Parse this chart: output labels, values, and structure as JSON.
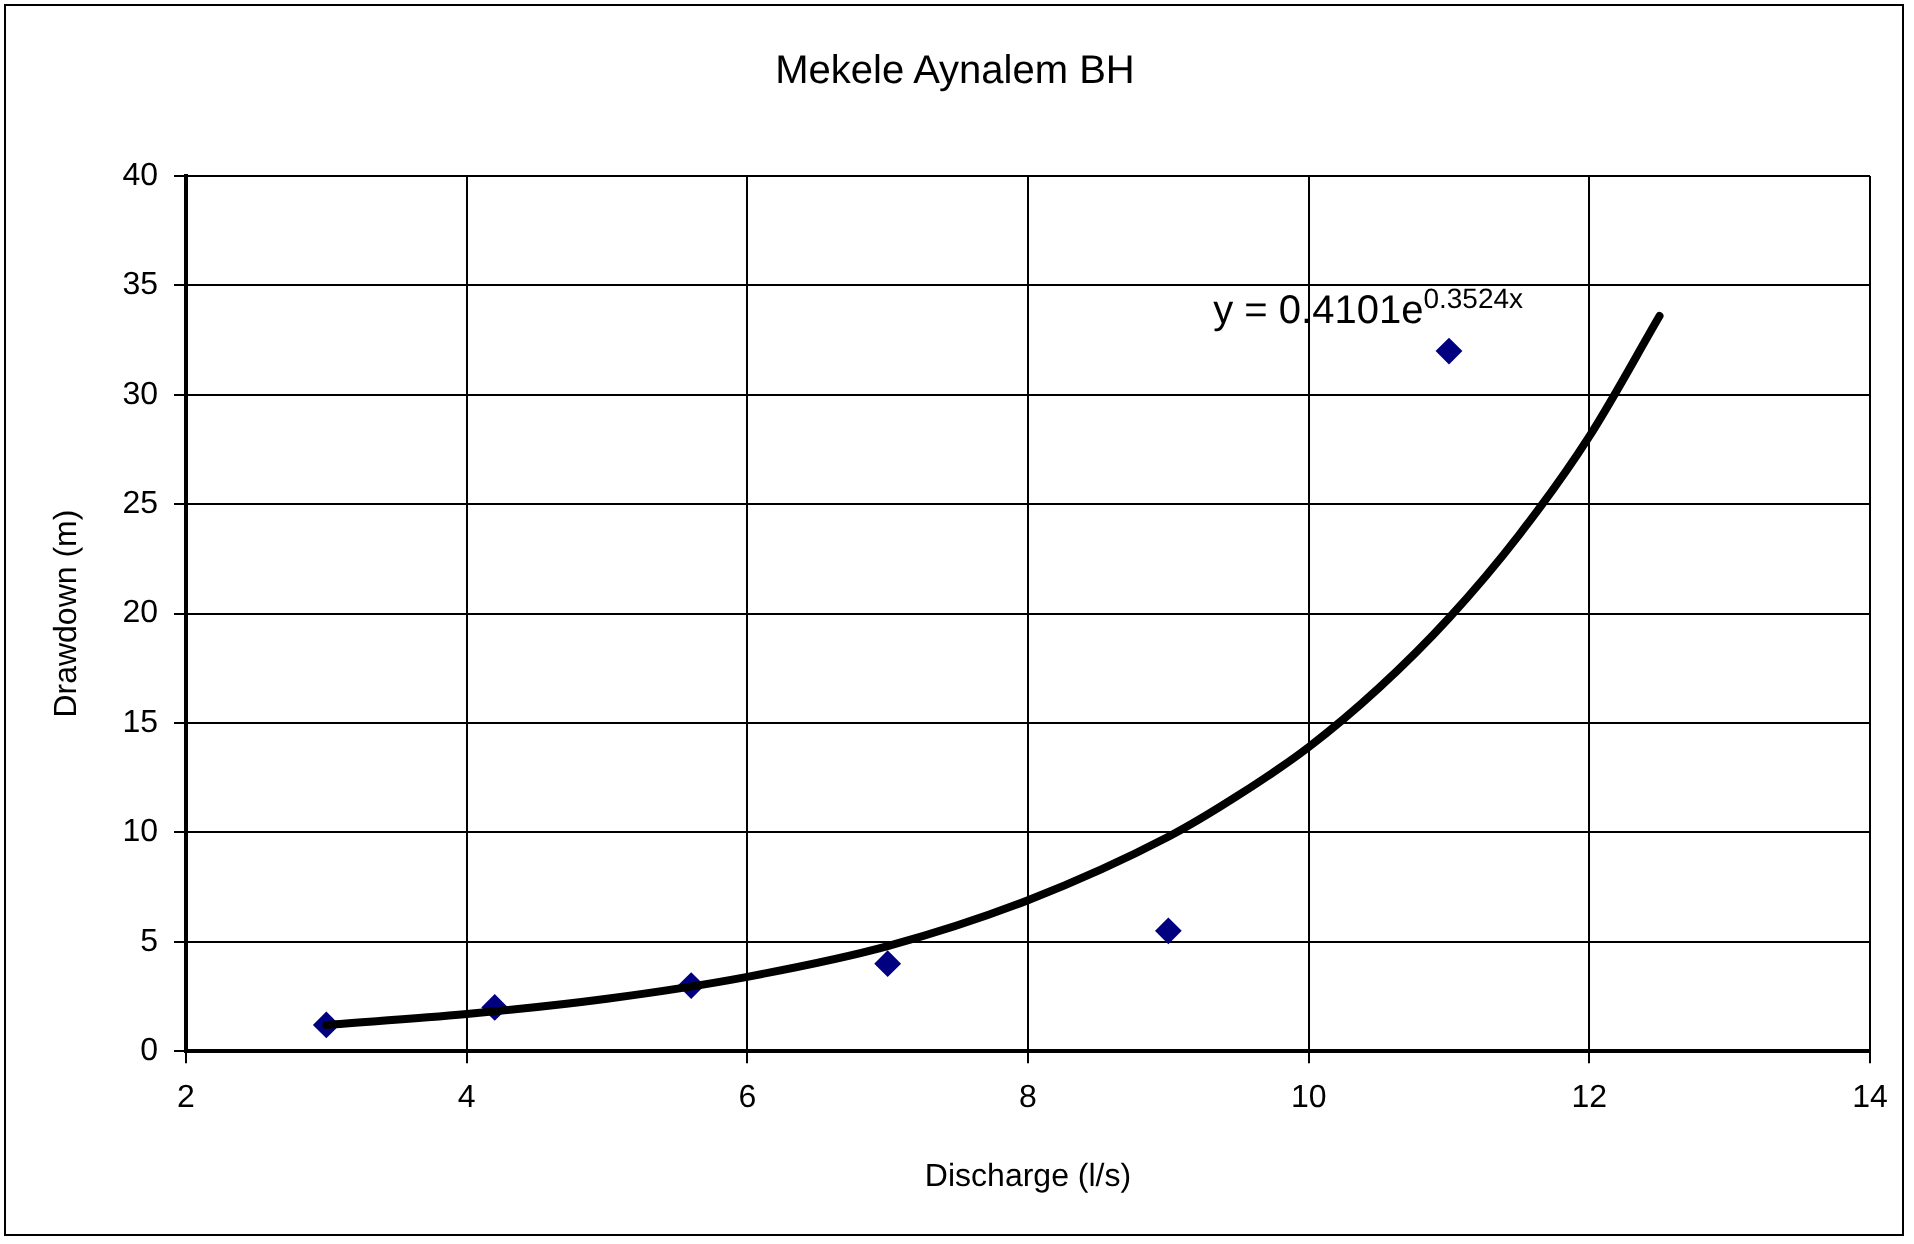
{
  "chart_data": {
    "type": "scatter",
    "title": "Mekele Aynalem BH",
    "xlabel": "Discharge (l/s)",
    "ylabel": "Drawdown (m)",
    "series": [
      {
        "color": "#000080",
        "marker": "diamond",
        "x": [
          3,
          4.2,
          5.6,
          7,
          9,
          11
        ],
        "values": [
          1.2,
          2,
          3,
          4,
          5.5,
          32
        ]
      },
      {
        "type": "line",
        "color": "#000000",
        "marker": "none",
        "x": [
          3,
          4,
          5,
          6,
          7,
          8,
          9,
          9.5,
          10,
          10.5,
          11,
          11.5,
          12,
          12.5
        ],
        "values": [
          1.2,
          1.7,
          2.4,
          3.4,
          4.8,
          6.9,
          9.8,
          11.7,
          13.9,
          16.6,
          19.8,
          23.6,
          28.1,
          33.6
        ]
      }
    ],
    "xlim": [
      2,
      14
    ],
    "xticks": [
      2,
      4,
      6,
      8,
      10,
      12,
      14
    ],
    "ylim": [
      0,
      40
    ],
    "yticks": [
      0,
      5,
      10,
      15,
      20,
      25,
      30,
      35,
      40
    ],
    "grid": true,
    "legend": false,
    "annotations": [
      "y = 0.4101e$^{0.3524x}$"
    ]
  }
}
